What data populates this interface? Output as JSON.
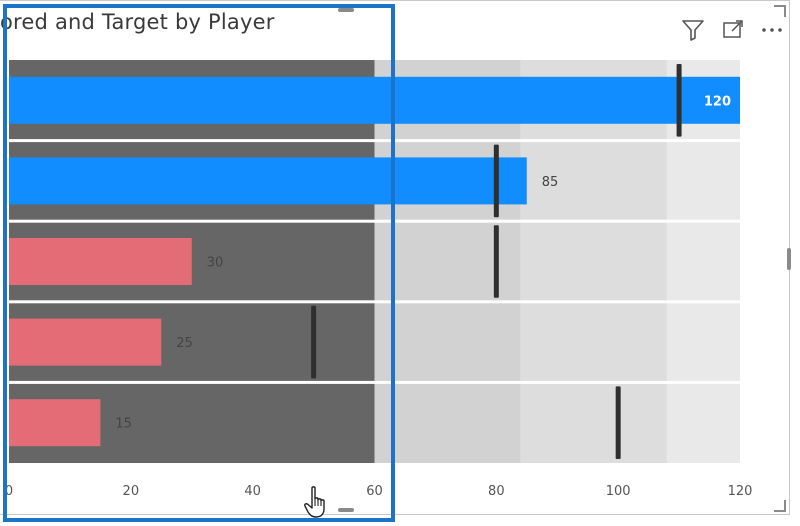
{
  "chart_data": {
    "type": "bullet",
    "title": "ored and Target by Player",
    "xlim": [
      0,
      120
    ],
    "x_ticks": [
      "0",
      "20",
      "40",
      "60",
      "80",
      "100",
      "120"
    ],
    "bands": [
      {
        "from": 0,
        "to": 60,
        "color": "#666666"
      },
      {
        "from": 60,
        "to": 84,
        "color": "#d2d2d2"
      },
      {
        "from": 84,
        "to": 108,
        "color": "#dddddd"
      },
      {
        "from": 108,
        "to": 120,
        "color": "#e9e9e9"
      }
    ],
    "rows": [
      {
        "value": 120,
        "target": 110,
        "label": "120",
        "color": "#118dff"
      },
      {
        "value": 85,
        "target": 80,
        "label": "85",
        "color": "#118dff"
      },
      {
        "value": 30,
        "target": 80,
        "label": "30",
        "color": "#e46c76"
      },
      {
        "value": 25,
        "target": 50,
        "label": "25",
        "color": "#e46c76"
      },
      {
        "value": 15,
        "target": 100,
        "label": "15",
        "color": "#e46c76"
      }
    ],
    "grid": false
  },
  "icons": {
    "filter": "filter-icon",
    "focus": "focus-mode-icon",
    "more": "more-options-icon",
    "cursor": "hand-cursor-icon"
  }
}
